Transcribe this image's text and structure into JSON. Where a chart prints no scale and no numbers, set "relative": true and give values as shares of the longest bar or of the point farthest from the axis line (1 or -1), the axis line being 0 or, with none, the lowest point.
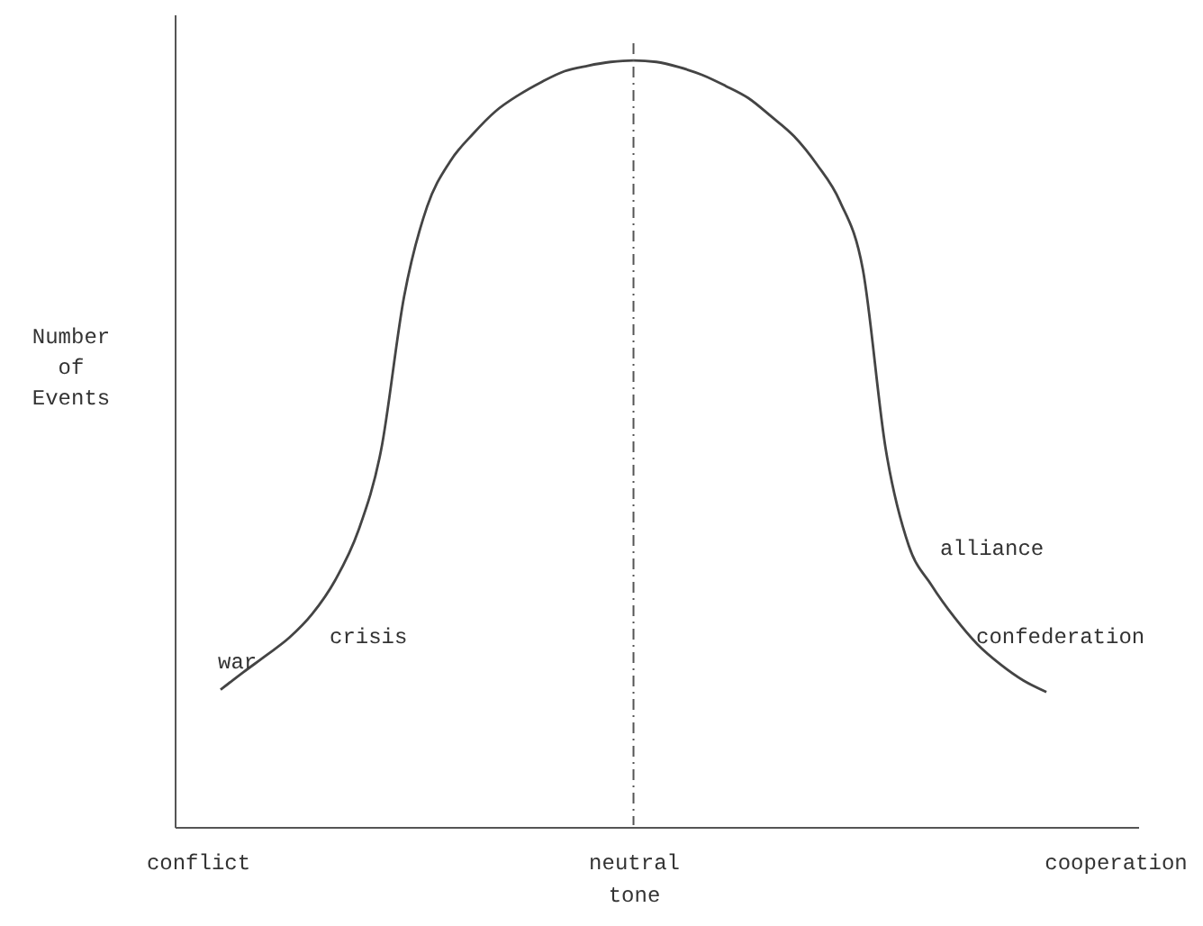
{
  "chart_data": {
    "type": "line",
    "relative": true,
    "ylabel": "Number of Events",
    "categories": [
      "conflict",
      null,
      null,
      null,
      null,
      null,
      null,
      null,
      null,
      null,
      null,
      null,
      null,
      null,
      null,
      null,
      null,
      null,
      null,
      "neutral tone",
      null,
      null,
      null,
      null,
      null,
      null,
      null,
      null,
      null,
      null,
      null,
      null,
      null,
      null,
      null,
      null,
      null,
      null,
      null,
      null,
      "cooperation"
    ],
    "series": [
      {
        "color": "#444444",
        "values": [
          null,
          0.179,
          0.202,
          0.224,
          0.247,
          0.278,
          0.322,
          0.386,
          0.492,
          0.692,
          0.809,
          0.868,
          0.904,
          0.934,
          0.955,
          0.972,
          0.986,
          0.993,
          0.998,
          1,
          0.998,
          0.991,
          0.981,
          0.967,
          0.951,
          0.927,
          0.901,
          0.864,
          0.816,
          0.727,
          0.492,
          0.367,
          0.315,
          0.273,
          0.238,
          0.212,
          0.191,
          0.176,
          null,
          null,
          null
        ]
      }
    ],
    "ref_lines": [
      {
        "axis": "x",
        "value": "neutral tone",
        "line_style": "dashed",
        "color": "#555555"
      }
    ],
    "annotations": [
      "war",
      "crisis",
      "alliance",
      "confederation"
    ],
    "marker": "none",
    "line_style": "solid",
    "grid": false
  }
}
